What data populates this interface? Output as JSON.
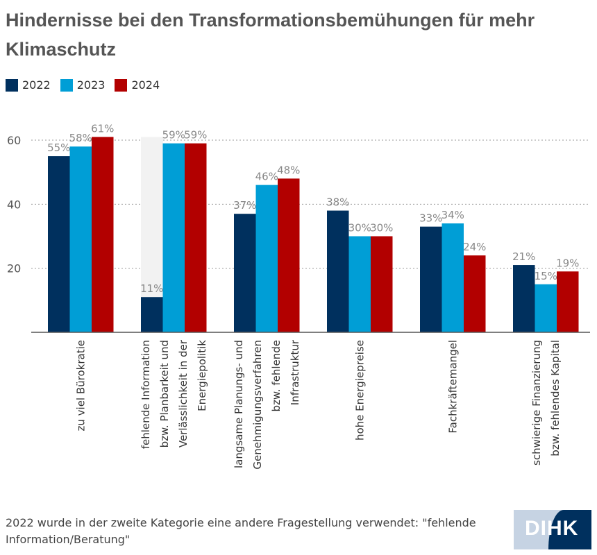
{
  "chart_data": {
    "type": "bar",
    "title": "Hindernisse bei den Transformationsbemühungen für mehr Klimaschutz",
    "categories": [
      [
        "zu viel Bürokratie"
      ],
      [
        "fehlende Information",
        "bzw. Planbarkeit und",
        "Verlässlichkeit in der",
        "Energiepolitik"
      ],
      [
        "langsame Planungs- und",
        "Genehmigungsverfahren",
        "bzw. fehlende",
        "Infrastruktur"
      ],
      [
        "hohe Energiepreise"
      ],
      [
        "Fachkräftemangel"
      ],
      [
        "schwierige Finanzierung",
        "bzw. fehlendes Kapital"
      ]
    ],
    "series": [
      {
        "name": "2022",
        "color": "#00305e",
        "values": [
          55,
          11,
          37,
          38,
          33,
          21
        ]
      },
      {
        "name": "2023",
        "color": "#009ed6",
        "values": [
          58,
          59,
          46,
          30,
          34,
          15
        ]
      },
      {
        "name": "2024",
        "color": "#b20000",
        "values": [
          61,
          59,
          48,
          30,
          24,
          19
        ]
      }
    ],
    "value_suffix": "%",
    "yticks": [
      20,
      40,
      60
    ],
    "ylim": [
      0,
      60
    ],
    "grid": true,
    "legend": "top-left"
  },
  "note": "2022 wurde in der zweite Kategorie eine andere Fragestellung verwendet: \"fehlende Information/Beratung\"",
  "logo": {
    "text": "DIHK"
  }
}
